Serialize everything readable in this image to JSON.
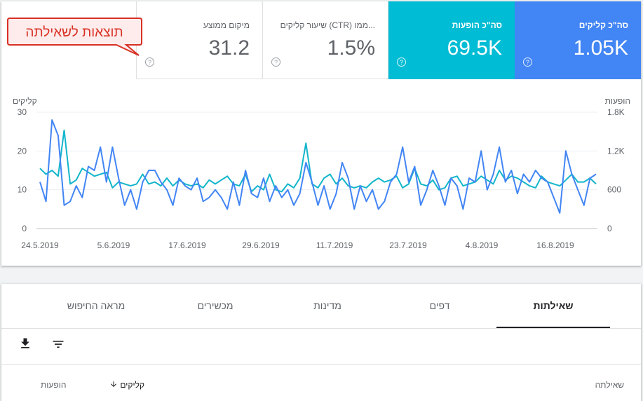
{
  "metrics": {
    "clicks": {
      "label": "סה\"כ קליקים",
      "value": "1.05K"
    },
    "impressions": {
      "label": "סה\"כ הופעות",
      "value": "69.5K"
    },
    "ctr": {
      "label": "שיעור קליקים (CTR) ממו...",
      "value": "1.5%"
    },
    "position": {
      "label": "מיקום ממוצע",
      "value": "31.2"
    }
  },
  "help_icon": "question-mark",
  "callout": {
    "text": "תוצאות לשאילתה",
    "border_color": "#d93025",
    "fill_color": "#fdeceb"
  },
  "chart_data": {
    "type": "line",
    "left_axis_label": "קליקים",
    "right_axis_label": "הופעות",
    "left_ticks": [
      "30",
      "20",
      "10",
      "0"
    ],
    "right_ticks": [
      "1.8K",
      "1.2K",
      "600",
      "0"
    ],
    "x_tick_labels": [
      "24.5.2019",
      "5.6.2019",
      "17.6.2019",
      "29.6.2019",
      "11.7.2019",
      "23.7.2019",
      "4.8.2019",
      "16.8.2019"
    ],
    "ylim_clicks": [
      0,
      30
    ],
    "ylim_impressions": [
      0,
      1800
    ],
    "series": [
      {
        "name": "קליקים",
        "color": "#4285f4",
        "axis": "left",
        "values": [
          12,
          7,
          28,
          24,
          6,
          7,
          11,
          8,
          16,
          15,
          21,
          12,
          21,
          13,
          6,
          10,
          5,
          12,
          15,
          15,
          12,
          10,
          6,
          13,
          11,
          10,
          13,
          7,
          8,
          10,
          8,
          5,
          12,
          6,
          15,
          9,
          8,
          13,
          7,
          11,
          8,
          10,
          6,
          9,
          17,
          12,
          6,
          11,
          5,
          9,
          17,
          13,
          5,
          11,
          7,
          10,
          5,
          7,
          12,
          14,
          21,
          12,
          16,
          6,
          10,
          15,
          11,
          6,
          13,
          11,
          5,
          13,
          12,
          20,
          10,
          14,
          21,
          12,
          15,
          9,
          14,
          12,
          15,
          13,
          12,
          8,
          4,
          20,
          14,
          10,
          6,
          13,
          14
        ]
      },
      {
        "name": "הופעות",
        "color": "#12b5cb",
        "axis": "right",
        "values": [
          930,
          840,
          900,
          810,
          1520,
          690,
          750,
          930,
          870,
          810,
          840,
          870,
          630,
          720,
          690,
          660,
          690,
          840,
          690,
          720,
          660,
          780,
          660,
          750,
          690,
          660,
          690,
          630,
          750,
          690,
          750,
          810,
          690,
          660,
          840,
          570,
          660,
          600,
          840,
          600,
          570,
          690,
          630,
          780,
          1320,
          690,
          630,
          780,
          840,
          690,
          780,
          660,
          630,
          660,
          630,
          720,
          780,
          720,
          750,
          810,
          630,
          690,
          930,
          690,
          660,
          750,
          600,
          630,
          780,
          810,
          660,
          690,
          720,
          810,
          750,
          690,
          900,
          750,
          810,
          780,
          720,
          660,
          630,
          810,
          720,
          690,
          660,
          750,
          840,
          720,
          720,
          780,
          690
        ]
      }
    ]
  },
  "tabs": [
    {
      "label": "שאילתות",
      "active": true
    },
    {
      "label": "דפים",
      "active": false
    },
    {
      "label": "מדינות",
      "active": false
    },
    {
      "label": "מכשירים",
      "active": false
    },
    {
      "label": "מראה החיפוש",
      "active": false
    }
  ],
  "toolbar": {
    "filter_icon": "filter-icon",
    "download_icon": "download-icon"
  },
  "table": {
    "headers": {
      "query": "שאילתה",
      "clicks": "קליקים",
      "impressions": "הופעות"
    },
    "sort_icon": "arrow-down-icon"
  }
}
